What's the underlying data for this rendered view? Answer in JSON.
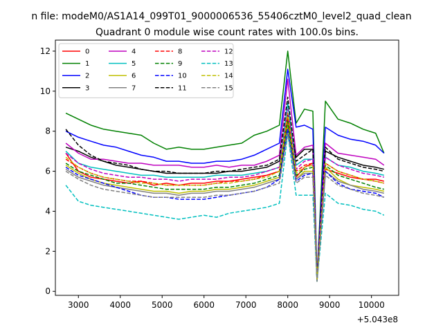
{
  "chart_data": {
    "type": "line",
    "suptitle": "n file: modeM0/AS1A14_099T01_9000006536_55406cztM0_level2_quad_clean",
    "title": "Quadrant 0 module wise count rates with 100.0s bins.",
    "xlabel": "",
    "ylabel": "",
    "x_offset_label": "+5.043e8",
    "xlim": [
      2450,
      10650
    ],
    "ylim": [
      -0.2,
      12.55
    ],
    "xticks": [
      3000,
      4000,
      5000,
      6000,
      7000,
      8000,
      9000,
      10000
    ],
    "xtick_labels": [
      "3000",
      "4000",
      "5000",
      "6000",
      "7000",
      "8000",
      "9000",
      "10000"
    ],
    "yticks": [
      0,
      2,
      4,
      6,
      8,
      10,
      12
    ],
    "ytick_labels": [
      "0",
      "2",
      "4",
      "6",
      "8",
      "10",
      "12"
    ],
    "grid": false,
    "legend_position": "top-left",
    "legend_columns": 4,
    "x": [
      2700,
      3000,
      3300,
      3600,
      3900,
      4200,
      4500,
      4800,
      5100,
      5400,
      5700,
      6000,
      6300,
      6600,
      6900,
      7200,
      7500,
      7800,
      8000,
      8200,
      8400,
      8600,
      8700,
      8900,
      9200,
      9500,
      9800,
      10100,
      10300
    ],
    "series": [
      {
        "name": "0",
        "color": "#ff0000",
        "dashed": false,
        "values": [
          6.9,
          6.0,
          5.7,
          5.6,
          5.5,
          5.4,
          5.5,
          5.3,
          5.4,
          5.3,
          5.4,
          5.4,
          5.5,
          5.5,
          5.6,
          5.7,
          5.8,
          6.0,
          8.6,
          5.7,
          6.2,
          6.4,
          0.55,
          6.1,
          5.9,
          5.7,
          5.6,
          5.6,
          5.5
        ]
      },
      {
        "name": "1",
        "color": "#008000",
        "dashed": false,
        "values": [
          8.9,
          8.6,
          8.3,
          8.1,
          8.0,
          7.9,
          7.8,
          7.4,
          7.1,
          7.2,
          7.1,
          7.1,
          7.2,
          7.3,
          7.4,
          7.8,
          8.0,
          8.3,
          12.0,
          8.4,
          9.1,
          9.0,
          0.65,
          9.5,
          8.6,
          8.4,
          8.1,
          7.9,
          6.9
        ]
      },
      {
        "name": "2",
        "color": "#0000ff",
        "dashed": false,
        "values": [
          8.0,
          7.7,
          7.5,
          7.3,
          7.2,
          7.0,
          6.8,
          6.7,
          6.5,
          6.5,
          6.4,
          6.4,
          6.5,
          6.5,
          6.6,
          6.8,
          7.1,
          7.4,
          11.1,
          8.2,
          8.3,
          8.1,
          0.7,
          8.2,
          7.8,
          7.6,
          7.5,
          7.3,
          6.9
        ]
      },
      {
        "name": "3",
        "color": "#000000",
        "dashed": false,
        "values": [
          7.2,
          7.0,
          6.7,
          6.5,
          6.3,
          6.2,
          6.1,
          6.0,
          5.9,
          5.9,
          5.9,
          5.9,
          5.9,
          6.0,
          6.0,
          6.1,
          6.2,
          6.5,
          8.8,
          6.7,
          7.1,
          7.1,
          0.65,
          7.0,
          6.7,
          6.5,
          6.3,
          6.2,
          6.1
        ]
      },
      {
        "name": "4",
        "color": "#bf00bf",
        "dashed": false,
        "values": [
          7.4,
          6.9,
          6.6,
          6.6,
          6.5,
          6.4,
          6.4,
          6.3,
          6.3,
          6.3,
          6.2,
          6.2,
          6.3,
          6.2,
          6.3,
          6.3,
          6.5,
          6.8,
          10.6,
          6.8,
          7.2,
          7.3,
          0.6,
          7.4,
          6.9,
          6.8,
          6.7,
          6.6,
          6.3
        ]
      },
      {
        "name": "5",
        "color": "#00bfbf",
        "dashed": false,
        "values": [
          7.0,
          6.4,
          6.2,
          6.1,
          6.0,
          5.9,
          5.8,
          5.8,
          5.7,
          5.7,
          5.7,
          5.7,
          5.8,
          5.8,
          5.8,
          5.9,
          6.0,
          6.2,
          9.4,
          6.3,
          6.6,
          6.6,
          0.55,
          6.7,
          6.3,
          6.2,
          6.0,
          5.9,
          5.8
        ]
      },
      {
        "name": "6",
        "color": "#bfbf00",
        "dashed": false,
        "values": [
          6.3,
          5.9,
          5.6,
          5.4,
          5.3,
          5.2,
          5.1,
          5.0,
          5.0,
          4.9,
          5.0,
          5.0,
          5.1,
          5.1,
          5.2,
          5.3,
          5.5,
          5.7,
          8.3,
          5.6,
          6.0,
          6.0,
          0.5,
          6.2,
          5.6,
          5.3,
          5.2,
          5.1,
          5.0
        ]
      },
      {
        "name": "7",
        "color": "#808080",
        "dashed": false,
        "values": [
          6.1,
          5.7,
          5.5,
          5.3,
          5.2,
          5.1,
          5.0,
          4.9,
          4.9,
          4.8,
          4.9,
          4.9,
          5.0,
          5.0,
          5.1,
          5.2,
          5.4,
          5.6,
          8.1,
          5.6,
          5.9,
          5.9,
          0.5,
          6.0,
          5.5,
          5.3,
          5.1,
          5.0,
          4.9
        ]
      },
      {
        "name": "8",
        "color": "#ff0000",
        "dashed": true,
        "values": [
          6.6,
          6.2,
          5.9,
          5.7,
          5.6,
          5.5,
          5.5,
          5.4,
          5.3,
          5.3,
          5.3,
          5.3,
          5.4,
          5.5,
          5.5,
          5.6,
          5.8,
          6.0,
          8.7,
          6.0,
          6.3,
          6.4,
          0.55,
          6.4,
          6.0,
          5.8,
          5.6,
          5.5,
          5.4
        ]
      },
      {
        "name": "9",
        "color": "#008000",
        "dashed": true,
        "values": [
          6.4,
          6.0,
          5.8,
          5.6,
          5.4,
          5.4,
          5.3,
          5.2,
          5.1,
          5.1,
          5.1,
          5.1,
          5.2,
          5.2,
          5.3,
          5.4,
          5.6,
          5.8,
          8.5,
          5.8,
          6.1,
          6.2,
          0.55,
          6.3,
          5.8,
          5.6,
          5.4,
          5.2,
          5.1
        ]
      },
      {
        "name": "10",
        "color": "#0000ff",
        "dashed": true,
        "values": [
          6.2,
          5.8,
          5.6,
          5.4,
          5.2,
          5.0,
          4.8,
          4.7,
          4.7,
          4.6,
          4.6,
          4.6,
          4.7,
          4.8,
          4.9,
          5.0,
          5.2,
          5.6,
          8.1,
          5.5,
          5.8,
          5.9,
          0.5,
          6.0,
          5.4,
          5.1,
          5.0,
          4.9,
          4.7
        ]
      },
      {
        "name": "11",
        "color": "#000000",
        "dashed": true,
        "values": [
          8.1,
          7.3,
          6.8,
          6.5,
          6.4,
          6.3,
          6.1,
          6.0,
          6.0,
          5.9,
          5.9,
          5.9,
          6.0,
          6.0,
          6.1,
          6.2,
          6.3,
          6.6,
          9.7,
          6.5,
          6.8,
          7.1,
          0.6,
          7.2,
          6.6,
          6.4,
          6.2,
          6.1,
          6.0
        ]
      },
      {
        "name": "12",
        "color": "#bf00bf",
        "dashed": true,
        "values": [
          6.9,
          6.4,
          6.1,
          5.9,
          5.8,
          5.7,
          5.7,
          5.6,
          5.6,
          5.5,
          5.6,
          5.6,
          5.6,
          5.7,
          5.7,
          5.8,
          6.0,
          6.2,
          9.1,
          6.1,
          6.5,
          6.6,
          0.55,
          6.7,
          6.3,
          6.1,
          5.9,
          5.8,
          5.7
        ]
      },
      {
        "name": "13",
        "color": "#00bfbf",
        "dashed": true,
        "values": [
          5.3,
          4.5,
          4.3,
          4.2,
          4.1,
          4.0,
          3.9,
          3.8,
          3.7,
          3.6,
          3.7,
          3.8,
          3.7,
          3.9,
          4.0,
          4.1,
          4.2,
          4.4,
          7.9,
          4.8,
          4.8,
          4.8,
          0.5,
          4.9,
          4.4,
          4.3,
          4.1,
          4.0,
          3.8
        ]
      },
      {
        "name": "14",
        "color": "#bfbf00",
        "dashed": true,
        "values": [
          6.7,
          6.2,
          5.9,
          5.7,
          5.6,
          5.5,
          5.4,
          5.4,
          5.3,
          5.3,
          5.3,
          5.3,
          5.4,
          5.4,
          5.5,
          5.6,
          5.7,
          6.0,
          8.9,
          5.9,
          6.2,
          6.3,
          0.55,
          6.4,
          6.0,
          5.8,
          5.6,
          5.5,
          5.4
        ]
      },
      {
        "name": "15",
        "color": "#808080",
        "dashed": true,
        "values": [
          6.0,
          5.6,
          5.3,
          5.1,
          5.0,
          4.9,
          4.8,
          4.7,
          4.7,
          4.7,
          4.7,
          4.7,
          4.8,
          4.8,
          4.9,
          5.0,
          5.2,
          5.4,
          7.9,
          5.4,
          5.7,
          5.7,
          0.5,
          5.8,
          5.3,
          5.1,
          4.9,
          4.8,
          4.7
        ]
      }
    ]
  }
}
